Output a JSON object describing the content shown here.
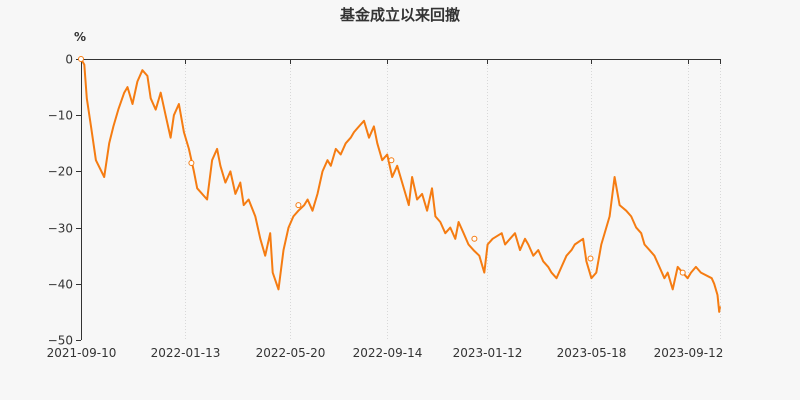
{
  "chart_data": {
    "type": "line",
    "title": "基金成立以来回撤",
    "y_unit_label": "%",
    "ylim": [
      -50,
      0
    ],
    "y_ticks": [
      0,
      -10,
      -20,
      -30,
      -40,
      -50
    ],
    "y_tick_labels": [
      "0",
      "−10",
      "−20",
      "−30",
      "−40",
      "−50"
    ],
    "x_range": [
      "2021-09-10",
      "2023-10-20"
    ],
    "x_ticks": [
      "2021-09-10",
      "2022-01-13",
      "2022-05-20",
      "2022-09-14",
      "2023-01-12",
      "2023-05-18",
      "2023-09-12"
    ],
    "grid": "vertical",
    "colors": {
      "series": "#f57c12",
      "axis": "#333333",
      "grid": "#d8d8d8",
      "background": "#f7f7f7"
    },
    "series": [
      {
        "x": [
          "2021-09-10",
          "2021-09-14",
          "2021-09-17",
          "2021-09-22",
          "2021-09-28",
          "2021-10-08",
          "2021-10-14",
          "2021-10-19",
          "2021-10-25",
          "2021-11-01",
          "2021-11-05",
          "2021-11-11",
          "2021-11-17",
          "2021-11-23",
          "2021-11-29",
          "2021-12-03",
          "2021-12-09",
          "2021-12-15",
          "2021-12-21",
          "2021-12-27",
          "2021-12-31",
          "2022-01-06",
          "2022-01-12",
          "2022-01-18",
          "2022-01-24",
          "2022-01-28",
          "2022-02-09",
          "2022-02-15",
          "2022-02-21",
          "2022-02-25",
          "2022-03-03",
          "2022-03-09",
          "2022-03-15",
          "2022-03-21",
          "2022-03-25",
          "2022-03-31",
          "2022-04-08",
          "2022-04-14",
          "2022-04-20",
          "2022-04-26",
          "2022-04-29",
          "2022-05-06",
          "2022-05-12",
          "2022-05-18",
          "2022-05-24",
          "2022-05-30",
          "2022-06-06",
          "2022-06-10",
          "2022-06-16",
          "2022-06-22",
          "2022-06-28",
          "2022-07-04",
          "2022-07-08",
          "2022-07-14",
          "2022-07-20",
          "2022-07-26",
          "2022-08-01",
          "2022-08-05",
          "2022-08-11",
          "2022-08-17",
          "2022-08-23",
          "2022-08-29",
          "2022-09-02",
          "2022-09-08",
          "2022-09-14",
          "2022-09-20",
          "2022-09-26",
          "2022-10-10",
          "2022-10-14",
          "2022-10-20",
          "2022-10-26",
          "2022-11-01",
          "2022-11-07",
          "2022-11-11",
          "2022-11-17",
          "2022-11-23",
          "2022-11-29",
          "2022-12-05",
          "2022-12-09",
          "2022-12-15",
          "2022-12-21",
          "2022-12-27",
          "2023-01-03",
          "2023-01-09",
          "2023-01-13",
          "2023-01-19",
          "2023-01-30",
          "2023-02-03",
          "2023-02-09",
          "2023-02-15",
          "2023-02-21",
          "2023-02-27",
          "2023-03-03",
          "2023-03-09",
          "2023-03-15",
          "2023-03-21",
          "2023-03-27",
          "2023-03-31",
          "2023-04-06",
          "2023-04-12",
          "2023-04-18",
          "2023-04-24",
          "2023-04-28",
          "2023-05-08",
          "2023-05-12",
          "2023-05-18",
          "2023-05-24",
          "2023-05-30",
          "2023-06-05",
          "2023-06-09",
          "2023-06-15",
          "2023-06-21",
          "2023-06-29",
          "2023-07-05",
          "2023-07-11",
          "2023-07-17",
          "2023-07-21",
          "2023-07-27",
          "2023-08-02",
          "2023-08-08",
          "2023-08-14",
          "2023-08-18",
          "2023-08-24",
          "2023-08-30",
          "2023-09-05",
          "2023-09-11",
          "2023-09-15",
          "2023-09-21",
          "2023-09-27",
          "2023-10-10",
          "2023-10-13",
          "2023-10-17",
          "2023-10-19",
          "2023-10-20"
        ],
        "values": [
          0,
          -1,
          -7,
          -12,
          -18,
          -21,
          -15,
          -12,
          -9,
          -6,
          -5,
          -8,
          -4,
          -2,
          -3,
          -7,
          -9,
          -6,
          -10,
          -14,
          -10,
          -8,
          -13,
          -16,
          -20,
          -23,
          -25,
          -18,
          -16,
          -19,
          -22,
          -20,
          -24,
          -22,
          -26,
          -25,
          -28,
          -32,
          -35,
          -31,
          -38,
          -41,
          -34,
          -30,
          -28,
          -27,
          -26,
          -25,
          -27,
          -24,
          -20,
          -18,
          -19,
          -16,
          -17,
          -15,
          -14,
          -13,
          -12,
          -11,
          -14,
          -12,
          -15,
          -18,
          -17,
          -21,
          -19,
          -26,
          -21,
          -25,
          -24,
          -27,
          -23,
          -28,
          -29,
          -31,
          -30,
          -32,
          -29,
          -31,
          -33,
          -34,
          -35,
          -38,
          -33,
          -32,
          -31,
          -33,
          -32,
          -31,
          -34,
          -32,
          -33,
          -35,
          -34,
          -36,
          -37,
          -38,
          -39,
          -37,
          -35,
          -34,
          -33,
          -32,
          -36,
          -39,
          -38,
          -33,
          -30,
          -28,
          -21,
          -26,
          -27,
          -28,
          -30,
          -31,
          -33,
          -34,
          -35,
          -37,
          -39,
          -38,
          -41,
          -37,
          -38,
          -39,
          -38,
          -37,
          -38,
          -39,
          -40,
          -42,
          -45,
          -44
        ]
      }
    ],
    "markers": [
      {
        "x": "2021-09-10",
        "y": 0
      },
      {
        "x": "2022-01-21",
        "y": -18.5
      },
      {
        "x": "2022-05-30",
        "y": -26
      },
      {
        "x": "2022-09-19",
        "y": -18
      },
      {
        "x": "2022-12-28",
        "y": -32
      },
      {
        "x": "2023-05-17",
        "y": -35.5
      },
      {
        "x": "2023-09-05",
        "y": -38
      }
    ]
  }
}
